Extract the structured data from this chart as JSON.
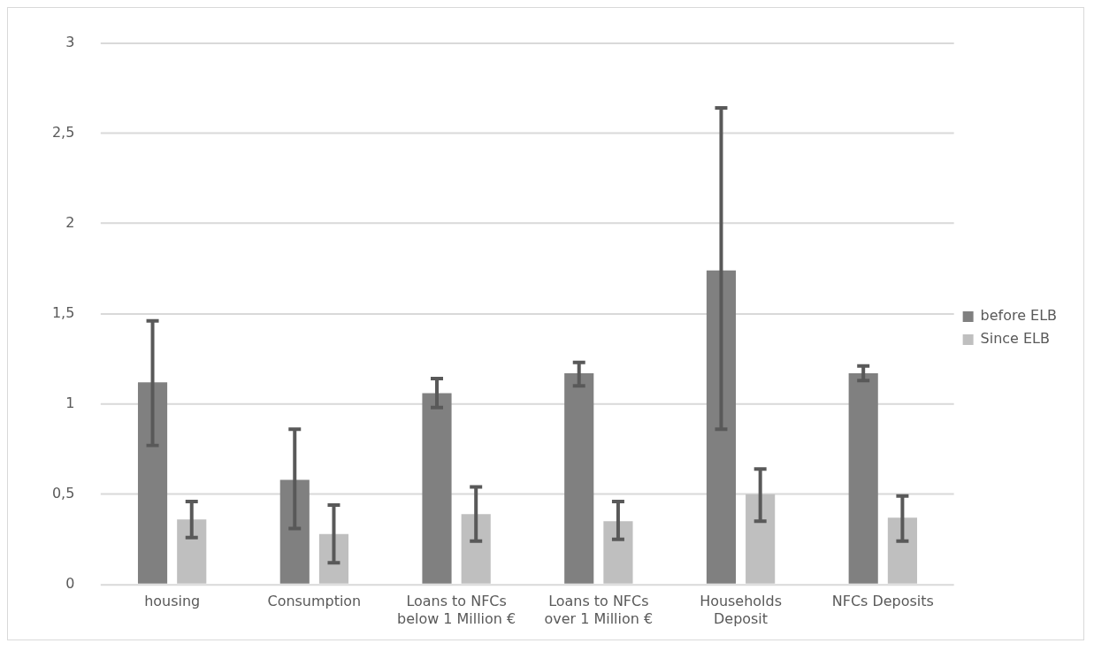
{
  "chart_data": {
    "type": "bar",
    "categories": [
      "housing",
      "Consumption",
      "Loans to NFCs below 1 Million €",
      "Loans to NFCs over 1 Million €",
      "Households Deposit",
      "NFCs Deposits"
    ],
    "series": [
      {
        "name": "before ELB",
        "color": "#808080",
        "values": [
          1.12,
          0.58,
          1.06,
          1.17,
          1.74,
          1.17
        ],
        "errors": [
          [
            0.77,
            1.46
          ],
          [
            0.31,
            0.86
          ],
          [
            0.98,
            1.14
          ],
          [
            1.1,
            1.23
          ],
          [
            0.86,
            2.64
          ],
          [
            1.13,
            1.21
          ]
        ]
      },
      {
        "name": "Since ELB",
        "color": "#bfbfbf",
        "values": [
          0.36,
          0.28,
          0.39,
          0.35,
          0.5,
          0.37
        ],
        "errors": [
          [
            0.26,
            0.46
          ],
          [
            0.12,
            0.44
          ],
          [
            0.24,
            0.54
          ],
          [
            0.25,
            0.46
          ],
          [
            0.35,
            0.64
          ],
          [
            0.24,
            0.49
          ]
        ]
      }
    ],
    "ylim": [
      0,
      3
    ],
    "yticks": [
      0,
      {
        "value": 0.5,
        "label": "0,5"
      },
      1,
      {
        "value": 1.5,
        "label": "1,5"
      },
      2,
      {
        "value": 2.5,
        "label": "2,5"
      },
      3
    ],
    "grid": "y",
    "legend": "right"
  }
}
